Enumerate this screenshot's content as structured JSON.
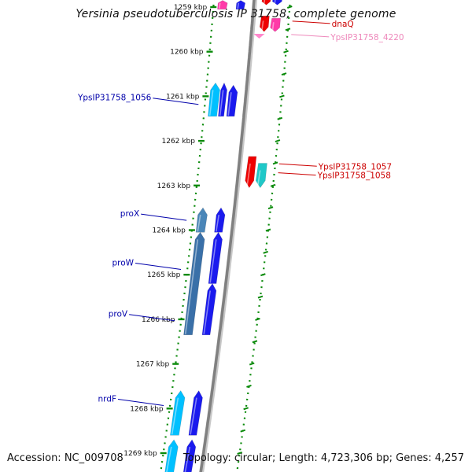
{
  "title": "Yersinia pseudotuberculosis IP 31758, complete genome",
  "footer": {
    "accession": "Accession: NC_009708",
    "summary": "Topology: circular; Length: 4,723,306 bp; Genes: 4,257"
  },
  "colors": {
    "backbone": "#808080",
    "dotted_ring": "#0a8a0a",
    "tick": "#0a8a0a",
    "forward_label": "#0000aa",
    "reverse_label": "#cc0000",
    "pink_label": "#ee88bb"
  },
  "ticks": [
    {
      "label": "1259 kbp",
      "kbp": 1259
    },
    {
      "label": "1260 kbp",
      "kbp": 1260
    },
    {
      "label": "1261 kbp",
      "kbp": 1261
    },
    {
      "label": "1262 kbp",
      "kbp": 1262
    },
    {
      "label": "1263 kbp",
      "kbp": 1263
    },
    {
      "label": "1264 kbp",
      "kbp": 1264
    },
    {
      "label": "1265 kbp",
      "kbp": 1265
    },
    {
      "label": "1266 kbp",
      "kbp": 1266
    },
    {
      "label": "1267 kbp",
      "kbp": 1267
    },
    {
      "label": "1268 kbp",
      "kbp": 1268
    },
    {
      "label": "1269 kbp",
      "kbp": 1269
    }
  ],
  "genes": [
    {
      "strand": "forward",
      "track": "outer",
      "start_kbp": 1258.85,
      "end_kbp": 1259.05,
      "color": "#ff3aa8"
    },
    {
      "strand": "forward",
      "track": "inner",
      "start_kbp": 1258.85,
      "end_kbp": 1259.05,
      "color": "#1a1aee"
    },
    {
      "strand": "reverse",
      "track": "inner",
      "start_kbp": 1258.7,
      "end_kbp": 1258.95,
      "color": "#ee0000"
    },
    {
      "strand": "reverse",
      "track": "outer",
      "start_kbp": 1258.7,
      "end_kbp": 1258.95,
      "color": "#1a1aee"
    },
    {
      "strand": "reverse",
      "track": "inner",
      "start_kbp": 1259.2,
      "end_kbp": 1259.55,
      "color": "#ee0000"
    },
    {
      "strand": "reverse",
      "track": "outer",
      "start_kbp": 1259.25,
      "end_kbp": 1259.55,
      "color": "#ff3aa8"
    },
    {
      "strand": "reverse",
      "track": "marker",
      "start_kbp": 1259.6,
      "end_kbp": 1259.7,
      "color": "#ff88cc"
    },
    {
      "strand": "forward",
      "track": "outer",
      "start_kbp": 1260.7,
      "end_kbp": 1261.45,
      "color": "#00c0ff"
    },
    {
      "strand": "forward",
      "track": "mid",
      "start_kbp": 1260.7,
      "end_kbp": 1261.45,
      "color": "#1a1aee"
    },
    {
      "strand": "forward",
      "track": "inner",
      "start_kbp": 1260.75,
      "end_kbp": 1261.45,
      "color": "#1a1aee"
    },
    {
      "strand": "reverse",
      "track": "inner",
      "start_kbp": 1262.35,
      "end_kbp": 1263.05,
      "color": "#ee0000"
    },
    {
      "strand": "reverse",
      "track": "outer",
      "start_kbp": 1262.5,
      "end_kbp": 1263.05,
      "color": "#20c8c8"
    },
    {
      "strand": "forward",
      "track": "outer",
      "start_kbp": 1263.5,
      "end_kbp": 1264.05,
      "color": "#4a86b8"
    },
    {
      "strand": "forward",
      "track": "inner",
      "start_kbp": 1263.5,
      "end_kbp": 1264.05,
      "color": "#1a1aee"
    },
    {
      "strand": "forward",
      "track": "outer",
      "start_kbp": 1264.05,
      "end_kbp": 1266.35,
      "color": "#3a70a8"
    },
    {
      "strand": "forward",
      "track": "inner",
      "start_kbp": 1264.05,
      "end_kbp": 1265.2,
      "color": "#1a1aee"
    },
    {
      "strand": "forward",
      "track": "inner",
      "start_kbp": 1265.2,
      "end_kbp": 1266.35,
      "color": "#1a1aee"
    },
    {
      "strand": "forward",
      "track": "outer",
      "start_kbp": 1267.6,
      "end_kbp": 1268.6,
      "color": "#00c0ff"
    },
    {
      "strand": "forward",
      "track": "inner",
      "start_kbp": 1267.6,
      "end_kbp": 1268.6,
      "color": "#1a1aee"
    },
    {
      "strand": "forward",
      "track": "outer",
      "start_kbp": 1268.7,
      "end_kbp": 1269.5,
      "color": "#00c0ff"
    },
    {
      "strand": "forward",
      "track": "inner",
      "start_kbp": 1268.7,
      "end_kbp": 1269.5,
      "color": "#1a1aee"
    }
  ],
  "labels": [
    {
      "text": "dnaQ",
      "side": "right",
      "kbp": 1259.35,
      "color": "#cc0000"
    },
    {
      "text": "YpsIP31758_4220",
      "side": "right",
      "kbp": 1259.65,
      "color": "#ee88bb"
    },
    {
      "text": "YpsIP31758_1056",
      "side": "left",
      "kbp": 1261.2,
      "color": "#0000aa"
    },
    {
      "text": "YpsIP31758_1057",
      "side": "right",
      "kbp": 1262.55,
      "color": "#cc0000"
    },
    {
      "text": "YpsIP31758_1058",
      "side": "right",
      "kbp": 1262.75,
      "color": "#cc0000"
    },
    {
      "text": "proX",
      "side": "left",
      "kbp": 1263.8,
      "color": "#0000aa"
    },
    {
      "text": "proW",
      "side": "left",
      "kbp": 1264.9,
      "color": "#0000aa"
    },
    {
      "text": "proV",
      "side": "left",
      "kbp": 1266.05,
      "color": "#0000aa"
    },
    {
      "text": "nrdF",
      "side": "left",
      "kbp": 1267.95,
      "color": "#0000aa"
    }
  ]
}
